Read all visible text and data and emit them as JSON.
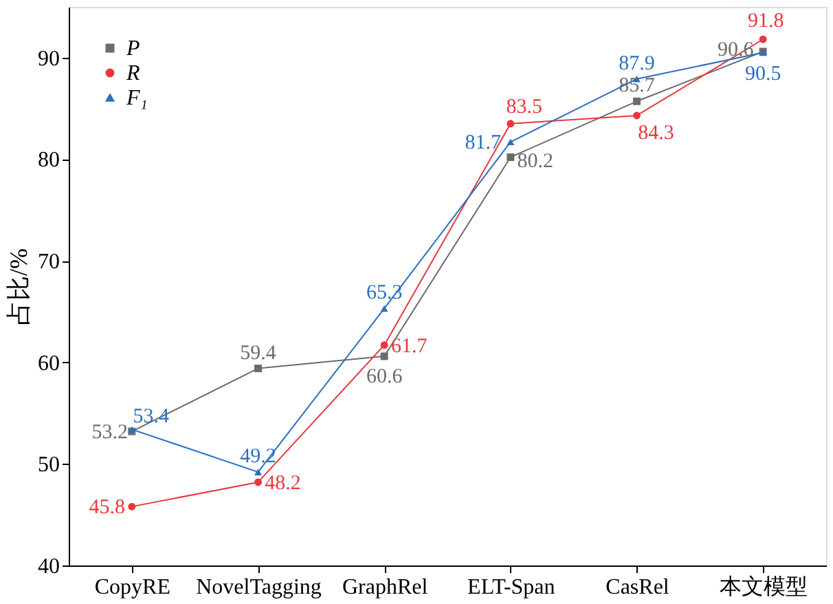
{
  "chart_data": {
    "type": "line",
    "ylabel": "占比/%",
    "categories": [
      "CopyRE",
      "NovelTagging",
      "GraphRel",
      "ELT-Span",
      "CasRel",
      "本文模型"
    ],
    "series": [
      {
        "name": "P",
        "color": "#6b6b6b",
        "marker": "square",
        "values": [
          53.2,
          59.4,
          60.6,
          80.2,
          85.7,
          90.6
        ]
      },
      {
        "name": "R",
        "color": "#e8383d",
        "marker": "circle",
        "values": [
          45.8,
          48.2,
          61.7,
          83.5,
          84.3,
          91.8
        ]
      },
      {
        "name": "F₁",
        "color": "#2b6fc0",
        "marker": "triangle",
        "values": [
          53.4,
          49.2,
          65.3,
          81.7,
          87.9,
          90.5
        ]
      }
    ],
    "ylim": [
      40,
      95
    ],
    "yticks": [
      40,
      50,
      60,
      70,
      80,
      90
    ],
    "grid": false,
    "legend": "top left",
    "data_labels": true,
    "line_style": "solid"
  }
}
